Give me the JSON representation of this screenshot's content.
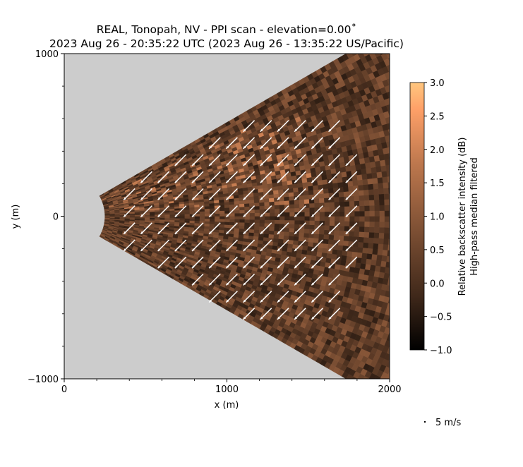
{
  "title": {
    "line1": "REAL, Tonopah, NV - PPI scan - elevation=0.00$^\\circ$",
    "line1_display": "REAL, Tonopah, NV - PPI scan - elevation=0.00˚",
    "line2": "2023 Aug 26 - 20:35:22 UTC (2023 Aug 26 - 13:35:22 US/Pacific)"
  },
  "chart_data": {
    "type": "heatmap",
    "subtype": "PPI radar scan with wind vector overlay",
    "xlabel": "x (m)",
    "ylabel": "y (m)",
    "xlim": [
      0,
      2000
    ],
    "ylim": [
      -1000,
      1000
    ],
    "xticks": [
      "0",
      "1000",
      "2000"
    ],
    "yticks": [
      "−1000",
      "0",
      "1000"
    ],
    "scan_sector": {
      "half_angle_deg": 30,
      "range_min_m": 250,
      "range_max_m": 2000
    },
    "background_color": "#cccccc",
    "colorbar": {
      "label_line1": "Relative backscatter intensity (dB)",
      "label_line2": "High-pass median filtered",
      "min": -1.0,
      "max": 3.0,
      "ticks": [
        "−1.0",
        "−0.5",
        "0.0",
        "0.5",
        "1.0",
        "1.5",
        "2.0",
        "2.5",
        "3.0"
      ],
      "tick_values": [
        -1.0,
        -0.5,
        0.0,
        0.5,
        1.0,
        1.5,
        2.0,
        2.5,
        3.0
      ],
      "colormap": "copper",
      "colors": [
        "#000000",
        "#3f281a",
        "#7e5034",
        "#be784e",
        "#fea068",
        "#ffc77f"
      ]
    },
    "wind_vectors": {
      "grid_spacing_m": 105,
      "typical_u_mps": -4.0,
      "typical_v_mps": -4.0,
      "color": "#ffffff",
      "reference_label": "5 m/s",
      "reference_speed_mps": 5
    }
  }
}
